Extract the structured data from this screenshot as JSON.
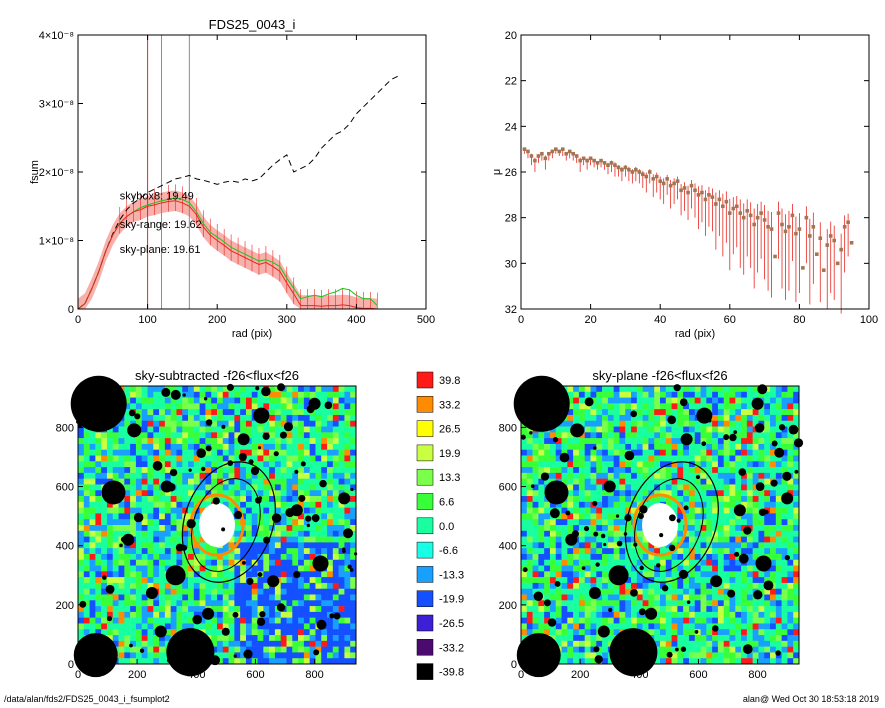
{
  "footer": {
    "path": "/data/alan/fds2/FDS25_0043_i_fsumplot2",
    "stamp": "alan@  Wed Oct 30 18:53:18 2019"
  },
  "colors": {
    "black": "#000000",
    "red": "#e8261e",
    "green": "#19c819",
    "grid_gray": "#8c8c8c"
  },
  "chart_data": [
    {
      "type": "line",
      "title": "FDS25_0043_i",
      "xlabel": "rad (pix)",
      "ylabel": "fsum",
      "xlim": [
        0,
        500
      ],
      "ylim": [
        0,
        4e-08
      ],
      "x_ticks": [
        0,
        100,
        200,
        300,
        400,
        500
      ],
      "y_ticks": [
        {
          "v": 0,
          "label": "0"
        },
        {
          "v": 1e-08,
          "label": "1×10⁻⁸"
        },
        {
          "v": 2e-08,
          "label": "2×10⁻⁸"
        },
        {
          "v": 3e-08,
          "label": "3×10⁻⁸"
        },
        {
          "v": 4e-08,
          "label": "4×10⁻⁸"
        }
      ],
      "vlines": [
        {
          "x": 100,
          "color": "#e8261e"
        },
        {
          "x": 120,
          "color": "#8c8c8c"
        },
        {
          "x": 160,
          "color": "#8c8c8c"
        }
      ],
      "annotations": [
        {
          "text": "skybox8: 19.49",
          "color": "#000000",
          "x": 60,
          "y": 1.6e-08
        },
        {
          "text": "sky-range: 19.62",
          "color": "#e8261e",
          "x": 60,
          "y": 1.18e-08
        },
        {
          "text": "sky-plane: 19.61",
          "color": "#19c819",
          "x": 60,
          "y": 8.2e-09
        }
      ],
      "series": [
        {
          "color": "#000000",
          "dash": true,
          "x": [
            0,
            10,
            20,
            30,
            40,
            50,
            60,
            70,
            80,
            90,
            100,
            110,
            120,
            130,
            140,
            150,
            160,
            170,
            180,
            190,
            200,
            210,
            220,
            230,
            240,
            250,
            260,
            270,
            280,
            290,
            300,
            310,
            320,
            330,
            340,
            350,
            360,
            370,
            380,
            390,
            400,
            410,
            420,
            430,
            440,
            450,
            460
          ],
          "y": [
            0,
            8e-10,
            3e-09,
            5.5e-09,
            8.5e-09,
            1.1e-08,
            1.3e-08,
            1.45e-08,
            1.55e-08,
            1.62e-08,
            1.7e-08,
            1.75e-08,
            1.8e-08,
            1.85e-08,
            1.9e-08,
            1.92e-08,
            1.95e-08,
            1.9e-08,
            1.88e-08,
            1.85e-08,
            1.82e-08,
            1.85e-08,
            1.87e-08,
            1.85e-08,
            1.9e-08,
            1.87e-08,
            1.9e-08,
            2e-08,
            2.1e-08,
            2.18e-08,
            2.25e-08,
            2e-08,
            2.05e-08,
            2.1e-08,
            2.2e-08,
            2.35e-08,
            2.45e-08,
            2.55e-08,
            2.6e-08,
            2.7e-08,
            2.85e-08,
            2.95e-08,
            3.05e-08,
            3.15e-08,
            3.25e-08,
            3.35e-08,
            3.4e-08
          ]
        },
        {
          "color": "#19c819",
          "dash": false,
          "x": [
            0,
            10,
            20,
            30,
            40,
            50,
            60,
            70,
            80,
            90,
            100,
            110,
            120,
            130,
            140,
            150,
            160,
            170,
            180,
            190,
            200,
            210,
            220,
            230,
            240,
            250,
            260,
            270,
            280,
            290,
            300,
            310,
            320,
            330,
            340,
            350,
            360,
            370,
            380,
            390,
            400,
            410,
            420,
            430
          ],
          "y": [
            0,
            8e-10,
            3e-09,
            5.5e-09,
            8.5e-09,
            1.08e-08,
            1.25e-08,
            1.35e-08,
            1.42e-08,
            1.48e-08,
            1.52e-08,
            1.55e-08,
            1.58e-08,
            1.6e-08,
            1.62e-08,
            1.6e-08,
            1.55e-08,
            1.42e-08,
            1.25e-08,
            1.12e-08,
            1.05e-08,
            9.8e-09,
            9e-09,
            8.5e-09,
            8e-09,
            7.5e-09,
            7e-09,
            7.2e-09,
            6.8e-09,
            6.2e-09,
            4.5e-09,
            3e-09,
            1.5e-09,
            1.8e-09,
            2e-09,
            1.8e-09,
            2.2e-09,
            2.5e-09,
            3e-09,
            2.8e-09,
            2e-09,
            1.5e-09,
            1.5e-09,
            5e-10
          ]
        },
        {
          "color": "#e8261e",
          "dash": false,
          "band": 1.5e-09,
          "x": [
            0,
            10,
            20,
            30,
            40,
            50,
            60,
            70,
            80,
            90,
            100,
            110,
            120,
            130,
            140,
            150,
            160,
            170,
            180,
            190,
            200,
            210,
            220,
            230,
            240,
            250,
            260,
            270,
            280,
            290,
            300,
            310,
            320,
            330,
            340,
            350,
            360,
            370,
            380,
            390,
            400,
            410,
            420,
            430
          ],
          "y": [
            0,
            8e-10,
            3e-09,
            5.5e-09,
            8.5e-09,
            1.08e-08,
            1.25e-08,
            1.35e-08,
            1.42e-08,
            1.45e-08,
            1.5e-08,
            1.52e-08,
            1.55e-08,
            1.57e-08,
            1.58e-08,
            1.55e-08,
            1.5e-08,
            1.38e-08,
            1.2e-08,
            1.08e-08,
            1e-08,
            9.3e-09,
            8.5e-09,
            8e-09,
            7.5e-09,
            7e-09,
            6.5e-09,
            6.8e-09,
            6.2e-09,
            5.5e-09,
            3.8e-09,
            2.2e-09,
            5e-10,
            5e-10,
            5e-10,
            4e-10,
            5e-10,
            5e-10,
            6e-10,
            5e-10,
            2e-10,
            1e-10,
            1e-10,
            0
          ]
        }
      ]
    },
    {
      "type": "scatter",
      "title": "",
      "xlabel": "rad (pix)",
      "ylabel": "μ",
      "xlim": [
        0,
        100
      ],
      "ylim": [
        32,
        20
      ],
      "x_ticks": [
        0,
        20,
        40,
        60,
        80,
        100
      ],
      "y_ticks": [
        20,
        22,
        24,
        26,
        28,
        30,
        32
      ],
      "points": {
        "x": [
          1,
          2,
          3,
          4,
          5,
          6,
          7,
          8,
          9,
          10,
          11,
          12,
          13,
          14,
          15,
          16,
          17,
          18,
          19,
          20,
          21,
          22,
          23,
          24,
          25,
          26,
          27,
          28,
          29,
          30,
          31,
          32,
          33,
          34,
          35,
          36,
          37,
          38,
          39,
          40,
          41,
          42,
          43,
          44,
          45,
          46,
          47,
          48,
          49,
          50,
          51,
          52,
          53,
          54,
          55,
          56,
          57,
          58,
          59,
          60,
          61,
          62,
          63,
          64,
          65,
          66,
          67,
          68,
          69,
          70,
          71,
          72,
          73,
          74,
          75,
          76,
          77,
          78,
          79,
          80,
          81,
          82,
          83,
          84,
          85,
          86,
          87,
          88,
          89,
          90,
          91,
          92,
          93,
          94,
          95
        ],
        "y": [
          25.0,
          25.1,
          25.3,
          25.5,
          25.3,
          25.2,
          25.4,
          25.2,
          25.1,
          25.0,
          25.1,
          25.0,
          25.2,
          25.1,
          25.2,
          25.3,
          25.5,
          25.4,
          25.5,
          25.4,
          25.5,
          25.6,
          25.5,
          25.6,
          25.7,
          25.6,
          25.7,
          25.8,
          25.9,
          25.8,
          25.9,
          26.0,
          25.9,
          26.0,
          26.1,
          26.2,
          26.0,
          26.3,
          26.2,
          26.4,
          26.5,
          26.3,
          26.6,
          26.5,
          26.4,
          26.8,
          26.7,
          26.9,
          26.6,
          26.8,
          27.0,
          26.9,
          27.2,
          27.0,
          27.1,
          27.4,
          27.2,
          27.5,
          27.3,
          27.8,
          27.6,
          27.5,
          27.8,
          28.0,
          27.7,
          27.9,
          28.3,
          28.0,
          27.8,
          28.1,
          28.4,
          28.5,
          29.7,
          27.8,
          28.3,
          28.6,
          28.4,
          27.9,
          28.7,
          28.5,
          30.2,
          28.0,
          28.8,
          28.4,
          29.6,
          28.9,
          30.3,
          29.2,
          28.8,
          29.0,
          30.0,
          29.4,
          28.4,
          28.2,
          29.1
        ],
        "err": [
          0.2,
          0.3,
          0.4,
          0.5,
          0.3,
          0.3,
          0.5,
          0.3,
          0.3,
          0.2,
          0.2,
          0.3,
          0.3,
          0.3,
          0.3,
          0.3,
          0.5,
          0.3,
          0.4,
          0.3,
          0.3,
          0.3,
          0.3,
          0.3,
          0.4,
          0.4,
          0.5,
          0.4,
          0.5,
          0.4,
          0.5,
          0.5,
          0.5,
          0.5,
          0.6,
          0.7,
          0.5,
          0.8,
          0.7,
          0.8,
          0.9,
          0.7,
          1.0,
          0.9,
          0.8,
          1.1,
          1.0,
          1.2,
          1.0,
          1.2,
          1.5,
          1.3,
          1.6,
          1.4,
          1.5,
          2.0,
          1.6,
          2.2,
          1.8,
          2.5,
          2.0,
          1.8,
          2.4,
          2.5,
          2.0,
          2.3,
          2.8,
          2.4,
          2.0,
          2.6,
          2.8,
          3.0,
          0.1,
          2.0,
          2.8,
          3.0,
          2.8,
          2.0,
          3.0,
          2.8,
          0.1,
          2.0,
          3.0,
          2.5,
          0.1,
          2.8,
          0.1,
          2.8,
          2.5,
          2.6,
          0.1,
          2.8,
          2.0,
          1.5,
          0.1
        ]
      }
    },
    {
      "type": "heatmap",
      "title": "sky-subtracted -f26<flux<f26",
      "xlim": [
        0,
        940
      ],
      "ylim": [
        0,
        940
      ],
      "x_ticks": [
        0,
        200,
        400,
        600,
        800
      ],
      "y_ticks": [
        0,
        200,
        400,
        600,
        800
      ]
    },
    {
      "type": "heatmap",
      "title": "sky-plane -f26<flux<f26",
      "xlim": [
        0,
        940
      ],
      "ylim": [
        0,
        940
      ],
      "x_ticks": [
        0,
        200,
        400,
        600,
        800
      ],
      "y_ticks": [
        0,
        200,
        400,
        600,
        800
      ]
    }
  ],
  "colorbar": {
    "labels": [
      "39.8",
      "33.2",
      "26.5",
      "19.9",
      "13.3",
      "6.6",
      "0.0",
      "-6.6",
      "-13.3",
      "-19.9",
      "-26.5",
      "-33.2",
      "-39.8"
    ],
    "colors": [
      "#ff1a1a",
      "#ff8c00",
      "#ffff00",
      "#c8ff40",
      "#7aff4a",
      "#39ff39",
      "#19ffa0",
      "#19ffe6",
      "#19a0ff",
      "#1450ff",
      "#3d1fd6",
      "#4a0a6e",
      "#000000"
    ]
  }
}
